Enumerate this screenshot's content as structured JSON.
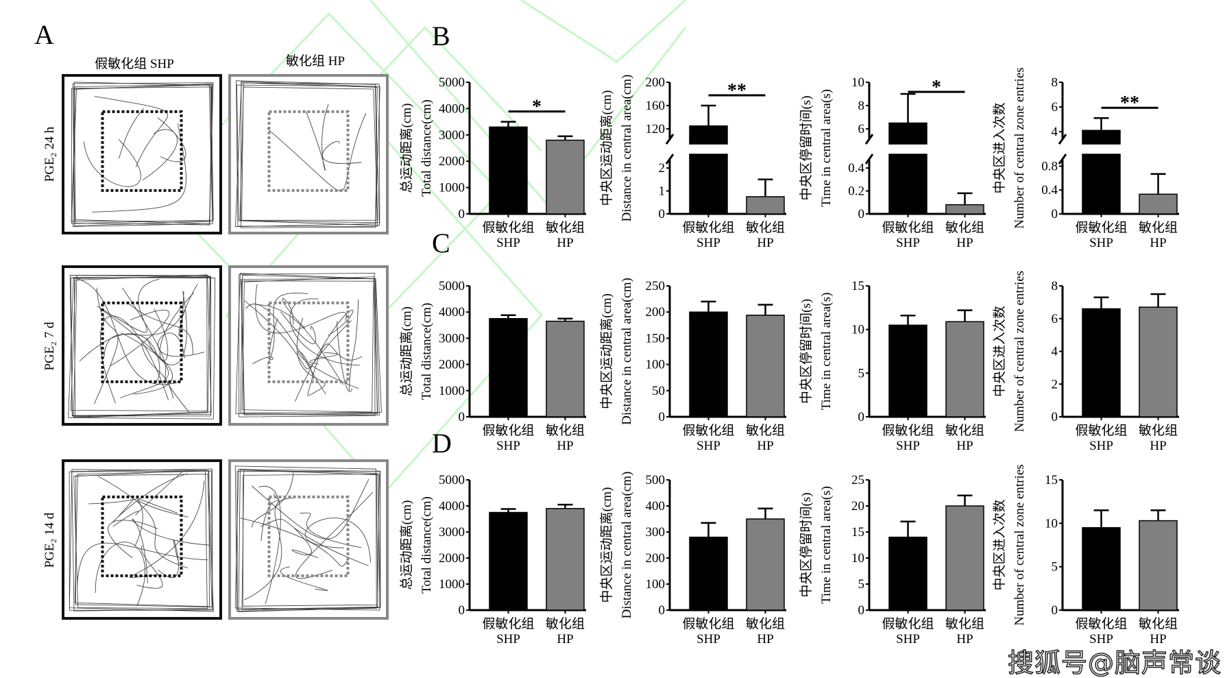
{
  "panel_labels": {
    "a": "A",
    "b": "B",
    "c": "C",
    "d": "D"
  },
  "panel_a": {
    "column_headers": [
      "假敏化组 SHP",
      "敏化组 HP"
    ],
    "row_labels": [
      "PGE₂ 24 h",
      "PGE₂ 7 d",
      "PGE₂ 14 d"
    ]
  },
  "colors": {
    "SHP": "#000000",
    "HP": "#808080",
    "watermark_lines": "#c6f7c6"
  },
  "watermark": "搜狐号@脑声常谈",
  "chart_data": [
    {
      "panel": "B",
      "type": "bar",
      "ylabel_cn": "总运动距离(cm)",
      "ylabel_en": "Total distance(cm)",
      "categories": [
        {
          "cn": "假敏化组",
          "en": "SHP"
        },
        {
          "cn": "敏化组",
          "en": "HP"
        }
      ],
      "ylim": [
        0,
        5000
      ],
      "yticks": [
        0,
        1000,
        2000,
        3000,
        4000,
        5000
      ],
      "values": [
        3300,
        2800
      ],
      "errors": [
        200,
        150
      ],
      "significance": "*"
    },
    {
      "panel": "B",
      "type": "bar",
      "ylabel_cn": "中央区运动距离(cm)",
      "ylabel_en": "Distance in central area(cm)",
      "categories": [
        {
          "cn": "假敏化组",
          "en": "SHP"
        },
        {
          "cn": "敏化组",
          "en": "HP"
        }
      ],
      "y_axis_break": {
        "lower": [
          0,
          2.6
        ],
        "upper": [
          94,
          200
        ]
      },
      "yticks": [
        0,
        1,
        2,
        120,
        160,
        200
      ],
      "values": [
        125,
        0.75
      ],
      "errors": [
        35,
        0.75
      ],
      "significance": "**"
    },
    {
      "panel": "B",
      "type": "bar",
      "ylabel_cn": "中央区停留时间(s)",
      "ylabel_en": "Time in central area(s)",
      "categories": [
        {
          "cn": "假敏化组",
          "en": "SHP"
        },
        {
          "cn": "敏化组",
          "en": "HP"
        }
      ],
      "y_axis_break": {
        "lower": [
          0,
          0.52
        ],
        "upper": [
          4.7,
          10
        ]
      },
      "yticks": [
        0,
        0.2,
        0.4,
        6,
        8,
        10
      ],
      "values": [
        6.5,
        0.08
      ],
      "errors": [
        2.5,
        0.1
      ],
      "significance": "*"
    },
    {
      "panel": "B",
      "type": "bar",
      "ylabel_cn": "中央区进入次数",
      "ylabel_en": "Number of central zone entries",
      "categories": [
        {
          "cn": "假敏化组",
          "en": "SHP"
        },
        {
          "cn": "敏化组",
          "en": "HP"
        }
      ],
      "y_axis_break": {
        "lower": [
          0,
          1.0
        ],
        "upper": [
          3.0,
          8
        ]
      },
      "yticks": [
        0,
        0.4,
        0.8,
        4,
        6,
        8
      ],
      "values": [
        4.1,
        0.33
      ],
      "errors": [
        1.0,
        0.34
      ],
      "significance": "**"
    },
    {
      "panel": "C",
      "type": "bar",
      "ylabel_cn": "总运动距离(cm)",
      "ylabel_en": "Total distance(cm)",
      "categories": [
        {
          "cn": "假敏化组",
          "en": "SHP"
        },
        {
          "cn": "敏化组",
          "en": "HP"
        }
      ],
      "ylim": [
        0,
        5000
      ],
      "yticks": [
        0,
        1000,
        2000,
        3000,
        4000,
        5000
      ],
      "values": [
        3750,
        3650
      ],
      "errors": [
        130,
        100
      ]
    },
    {
      "panel": "C",
      "type": "bar",
      "ylabel_cn": "中央区运动距离(cm)",
      "ylabel_en": "Distance in central area(cm)",
      "categories": [
        {
          "cn": "假敏化组",
          "en": "SHP"
        },
        {
          "cn": "敏化组",
          "en": "HP"
        }
      ],
      "ylim": [
        0,
        250
      ],
      "yticks": [
        0,
        50,
        100,
        150,
        200,
        250
      ],
      "values": [
        200,
        194
      ],
      "errors": [
        20,
        20
      ]
    },
    {
      "panel": "C",
      "type": "bar",
      "ylabel_cn": "中央区停留时间(s)",
      "ylabel_en": "Time in central area(s)",
      "categories": [
        {
          "cn": "假敏化组",
          "en": "SHP"
        },
        {
          "cn": "敏化组",
          "en": "HP"
        }
      ],
      "ylim": [
        0,
        15
      ],
      "yticks": [
        0,
        5,
        10,
        15
      ],
      "values": [
        10.5,
        10.9
      ],
      "errors": [
        1.1,
        1.3
      ]
    },
    {
      "panel": "C",
      "type": "bar",
      "ylabel_cn": "中央区进入次数",
      "ylabel_en": "Number of central zone entries",
      "categories": [
        {
          "cn": "假敏化组",
          "en": "SHP"
        },
        {
          "cn": "敏化组",
          "en": "HP"
        }
      ],
      "ylim": [
        0,
        8
      ],
      "yticks": [
        0,
        2,
        4,
        6,
        8
      ],
      "values": [
        6.6,
        6.7
      ],
      "errors": [
        0.7,
        0.8
      ]
    },
    {
      "panel": "D",
      "type": "bar",
      "ylabel_cn": "总运动距离(cm)",
      "ylabel_en": "Total distance(cm)",
      "categories": [
        {
          "cn": "假敏化组",
          "en": "SHP"
        },
        {
          "cn": "敏化组",
          "en": "HP"
        }
      ],
      "ylim": [
        0,
        5000
      ],
      "yticks": [
        0,
        1000,
        2000,
        3000,
        4000,
        5000
      ],
      "values": [
        3750,
        3900
      ],
      "errors": [
        130,
        150
      ]
    },
    {
      "panel": "D",
      "type": "bar",
      "ylabel_cn": "中央区运动距离(cm)",
      "ylabel_en": "Distance in central area(cm)",
      "categories": [
        {
          "cn": "假敏化组",
          "en": "SHP"
        },
        {
          "cn": "敏化组",
          "en": "HP"
        }
      ],
      "ylim": [
        0,
        500
      ],
      "yticks": [
        0,
        100,
        200,
        300,
        400,
        500
      ],
      "values": [
        280,
        350
      ],
      "errors": [
        55,
        40
      ]
    },
    {
      "panel": "D",
      "type": "bar",
      "ylabel_cn": "中央区停留时间(s)",
      "ylabel_en": "Time in central area(s)",
      "categories": [
        {
          "cn": "假敏化组",
          "en": "SHP"
        },
        {
          "cn": "敏化组",
          "en": "HP"
        }
      ],
      "ylim": [
        0,
        25
      ],
      "yticks": [
        0,
        5,
        10,
        15,
        20,
        25
      ],
      "values": [
        14,
        20
      ],
      "errors": [
        3,
        2
      ]
    },
    {
      "panel": "D",
      "type": "bar",
      "ylabel_cn": "中央区进入次数",
      "ylabel_en": "Number of central zone entries",
      "categories": [
        {
          "cn": "假敏化组",
          "en": "SHP"
        },
        {
          "cn": "敏化组",
          "en": "HP"
        }
      ],
      "ylim": [
        0,
        15
      ],
      "yticks": [
        0,
        5,
        10,
        15
      ],
      "values": [
        9.5,
        10.3
      ],
      "errors": [
        2,
        1.2
      ]
    }
  ]
}
